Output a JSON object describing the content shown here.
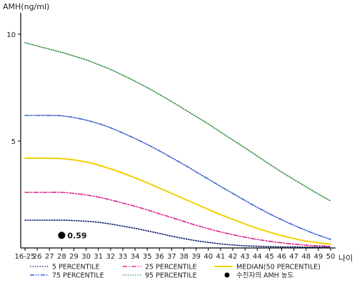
{
  "chart_data": {
    "type": "line",
    "ylabel": "AMH(ng/ml)",
    "xlabel": "나이",
    "ylim": [
      0,
      11
    ],
    "y_ticks": [
      "5",
      "10"
    ],
    "y_tick_values": [
      5,
      10
    ],
    "categories": [
      "16-25",
      "26",
      "27",
      "28",
      "29",
      "30",
      "31",
      "32",
      "33",
      "34",
      "35",
      "36",
      "37",
      "38",
      "39",
      "40",
      "41",
      "42",
      "43",
      "44",
      "45",
      "46",
      "47",
      "48",
      "49",
      "50"
    ],
    "series": [
      {
        "name": "5 PERCENTILE",
        "color": "#0a1a6b",
        "dash": "dot",
        "values": [
          1.3,
          1.3,
          1.3,
          1.3,
          1.28,
          1.25,
          1.2,
          1.12,
          1.02,
          0.92,
          0.8,
          0.68,
          0.55,
          0.44,
          0.34,
          0.26,
          0.19,
          0.14,
          0.1,
          0.08,
          0.06,
          0.05,
          0.05,
          0.04,
          0.04,
          0.04
        ]
      },
      {
        "name": "25 PERCENTILE",
        "color": "#e0208a",
        "dash": "dashdot",
        "values": [
          2.6,
          2.6,
          2.6,
          2.6,
          2.55,
          2.48,
          2.38,
          2.25,
          2.1,
          1.95,
          1.78,
          1.6,
          1.42,
          1.24,
          1.06,
          0.9,
          0.75,
          0.62,
          0.5,
          0.4,
          0.31,
          0.24,
          0.18,
          0.13,
          0.1,
          0.08
        ]
      },
      {
        "name": "MEDIAN(50 PERCENTILE)",
        "color": "#f0d000",
        "dash": "solid",
        "values": [
          4.2,
          4.2,
          4.2,
          4.18,
          4.12,
          4.02,
          3.88,
          3.7,
          3.5,
          3.28,
          3.05,
          2.8,
          2.55,
          2.3,
          2.05,
          1.8,
          1.56,
          1.34,
          1.12,
          0.92,
          0.74,
          0.58,
          0.44,
          0.32,
          0.24,
          0.18
        ]
      },
      {
        "name": "75 PERCENTILE",
        "color": "#3a5fd0",
        "dash": "dashdotdot",
        "values": [
          6.2,
          6.2,
          6.2,
          6.18,
          6.1,
          5.98,
          5.82,
          5.62,
          5.38,
          5.12,
          4.84,
          4.54,
          4.22,
          3.9,
          3.56,
          3.22,
          2.88,
          2.55,
          2.22,
          1.9,
          1.6,
          1.32,
          1.06,
          0.82,
          0.6,
          0.4
        ]
      },
      {
        "name": "95 PERCENTILE",
        "color": "#2f8a3a",
        "dash": "dot",
        "values": [
          9.6,
          9.45,
          9.3,
          9.15,
          8.98,
          8.8,
          8.58,
          8.35,
          8.08,
          7.8,
          7.5,
          7.18,
          6.85,
          6.5,
          6.15,
          5.8,
          5.42,
          5.05,
          4.68,
          4.3,
          3.92,
          3.55,
          3.2,
          2.86,
          2.52,
          2.2
        ]
      }
    ],
    "marker": {
      "label": "수진자의 AMH 농도",
      "category": "28",
      "value": 0.59,
      "text": "0.59",
      "color": "#000000"
    },
    "legend_order": [
      [
        "5 PERCENTILE",
        "25 PERCENTILE",
        "MEDIAN(50 PERCENTILE)"
      ],
      [
        "75 PERCENTILE",
        "95 PERCENTILE",
        "수진자의 AMH 농도"
      ]
    ],
    "legend_position": "bottom",
    "grid": false
  }
}
